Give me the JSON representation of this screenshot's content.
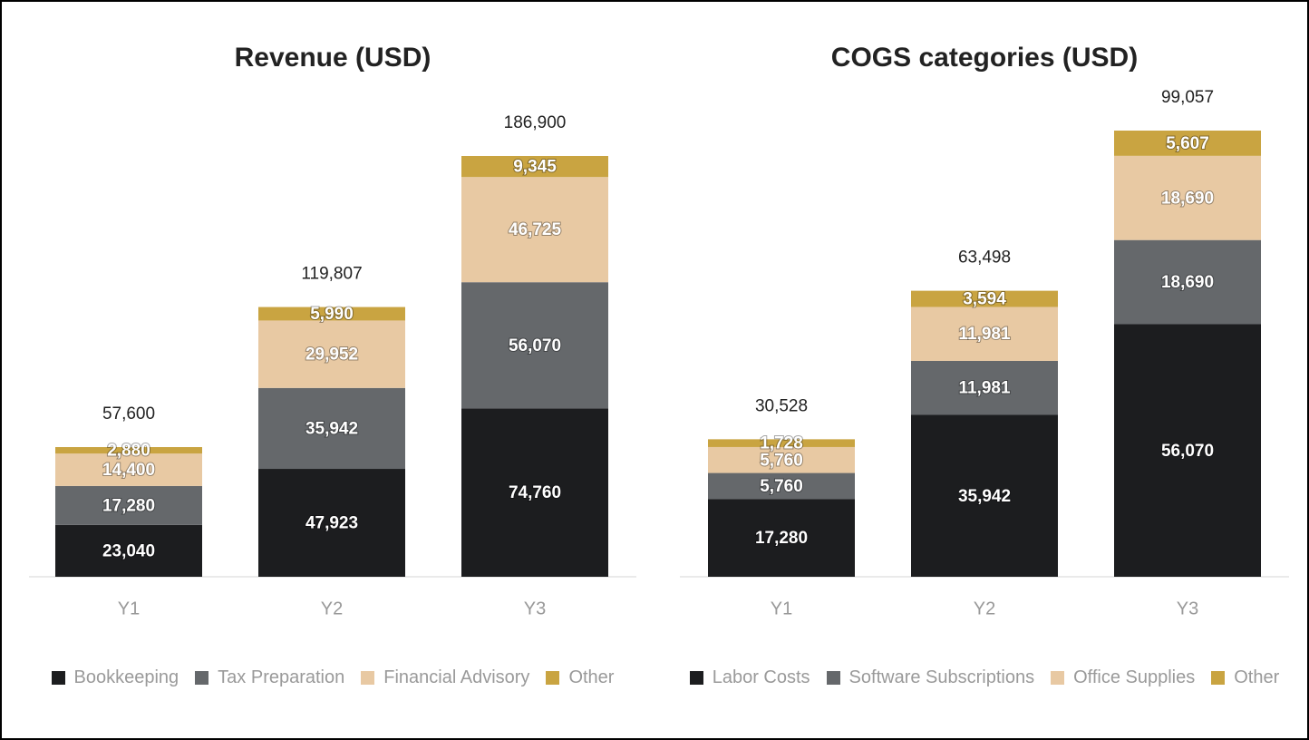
{
  "chart_data": [
    {
      "type": "bar",
      "stacked": true,
      "title": "Revenue (USD)",
      "categories": [
        "Y1",
        "Y2",
        "Y3"
      ],
      "series": [
        {
          "name": "Bookkeeping",
          "color": "#1c1d1f",
          "values": [
            23040,
            47923,
            74760
          ],
          "value_labels": [
            "23,040",
            "47,923",
            "74,760"
          ]
        },
        {
          "name": "Tax Preparation",
          "color": "#65686b",
          "values": [
            17280,
            35942,
            56070
          ],
          "value_labels": [
            "17,280",
            "35,942",
            "56,070"
          ]
        },
        {
          "name": "Financial Advisory",
          "color": "#e8c9a3",
          "values": [
            14400,
            29952,
            46725
          ],
          "value_labels": [
            "14,400",
            "29,952",
            "46,725"
          ]
        },
        {
          "name": "Other",
          "color": "#c9a441",
          "values": [
            2880,
            5990,
            9345
          ],
          "value_labels": [
            "2,880",
            "5,990",
            "9,345"
          ]
        }
      ],
      "totals": [
        57600,
        119807,
        186900
      ],
      "total_labels": [
        "57,600",
        "119,807",
        "186,900"
      ]
    },
    {
      "type": "bar",
      "stacked": true,
      "title": "COGS categories (USD)",
      "categories": [
        "Y1",
        "Y2",
        "Y3"
      ],
      "series": [
        {
          "name": "Labor Costs",
          "color": "#1c1d1f",
          "values": [
            17280,
            35942,
            56070
          ],
          "value_labels": [
            "17,280",
            "35,942",
            "56,070"
          ]
        },
        {
          "name": "Software Subscriptions",
          "color": "#65686b",
          "values": [
            5760,
            11981,
            18690
          ],
          "value_labels": [
            "5,760",
            "11,981",
            "18,690"
          ]
        },
        {
          "name": "Office Supplies",
          "color": "#e8c9a3",
          "values": [
            5760,
            11981,
            18690
          ],
          "value_labels": [
            "5,760",
            "11,981",
            "18,690"
          ]
        },
        {
          "name": "Other",
          "color": "#c9a441",
          "values": [
            1728,
            3594,
            5607
          ],
          "value_labels": [
            "1,728",
            "3,594",
            "5,607"
          ]
        }
      ],
      "totals": [
        30528,
        63498,
        99057
      ],
      "total_labels": [
        "30,528",
        "63,498",
        "99,057"
      ]
    }
  ]
}
